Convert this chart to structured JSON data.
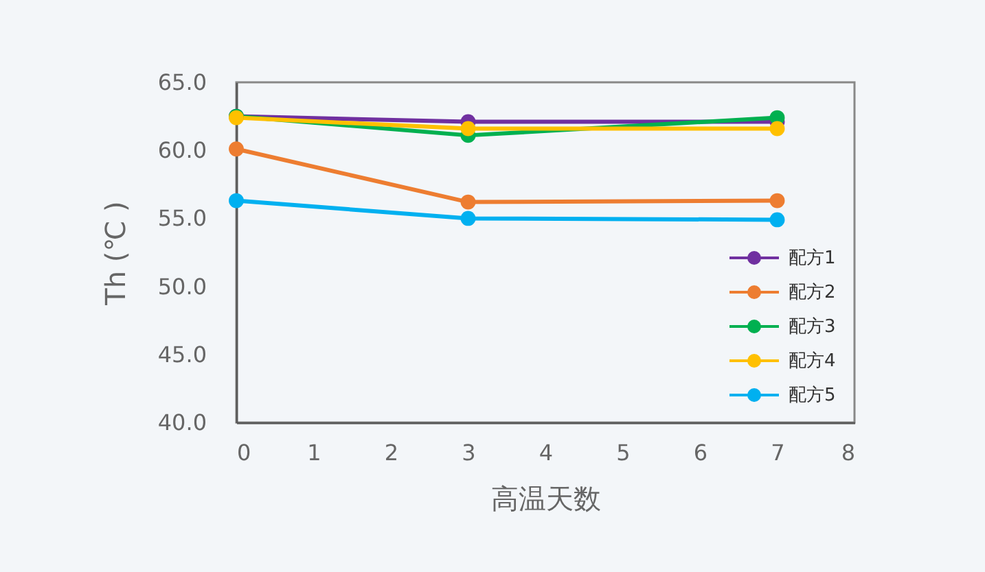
{
  "chart_data": {
    "type": "line",
    "xlabel": "高温天数",
    "ylabel": "Th (℃ )",
    "x": [
      0,
      3,
      7
    ],
    "series": [
      {
        "name": "配方1",
        "color": "#7030a0",
        "values": [
          62.5,
          62.1,
          62.1
        ]
      },
      {
        "name": "配方2",
        "color": "#ed7d31",
        "values": [
          60.1,
          56.2,
          56.3
        ]
      },
      {
        "name": "配方3",
        "color": "#00b050",
        "values": [
          62.5,
          61.1,
          62.4
        ]
      },
      {
        "name": "配方4",
        "color": "#ffc000",
        "values": [
          62.4,
          61.6,
          61.6
        ]
      },
      {
        "name": "配方5",
        "color": "#00b0f0",
        "values": [
          56.3,
          55.0,
          54.9
        ]
      }
    ],
    "xlim": [
      0,
      8
    ],
    "xticks": [
      0,
      1,
      2,
      3,
      4,
      5,
      6,
      7,
      8
    ],
    "ylim": [
      40,
      65
    ],
    "yticks": [
      {
        "value": 40,
        "label": "40.0"
      },
      {
        "value": 45,
        "label": "45.0"
      },
      {
        "value": 50,
        "label": "50.0"
      },
      {
        "value": 55,
        "label": "55.0"
      },
      {
        "value": 60,
        "label": "60.0"
      },
      {
        "value": 65,
        "label": "65.0"
      }
    ],
    "grid": false,
    "legend": "bottom right",
    "marker": "circle",
    "line_style": "solid"
  }
}
